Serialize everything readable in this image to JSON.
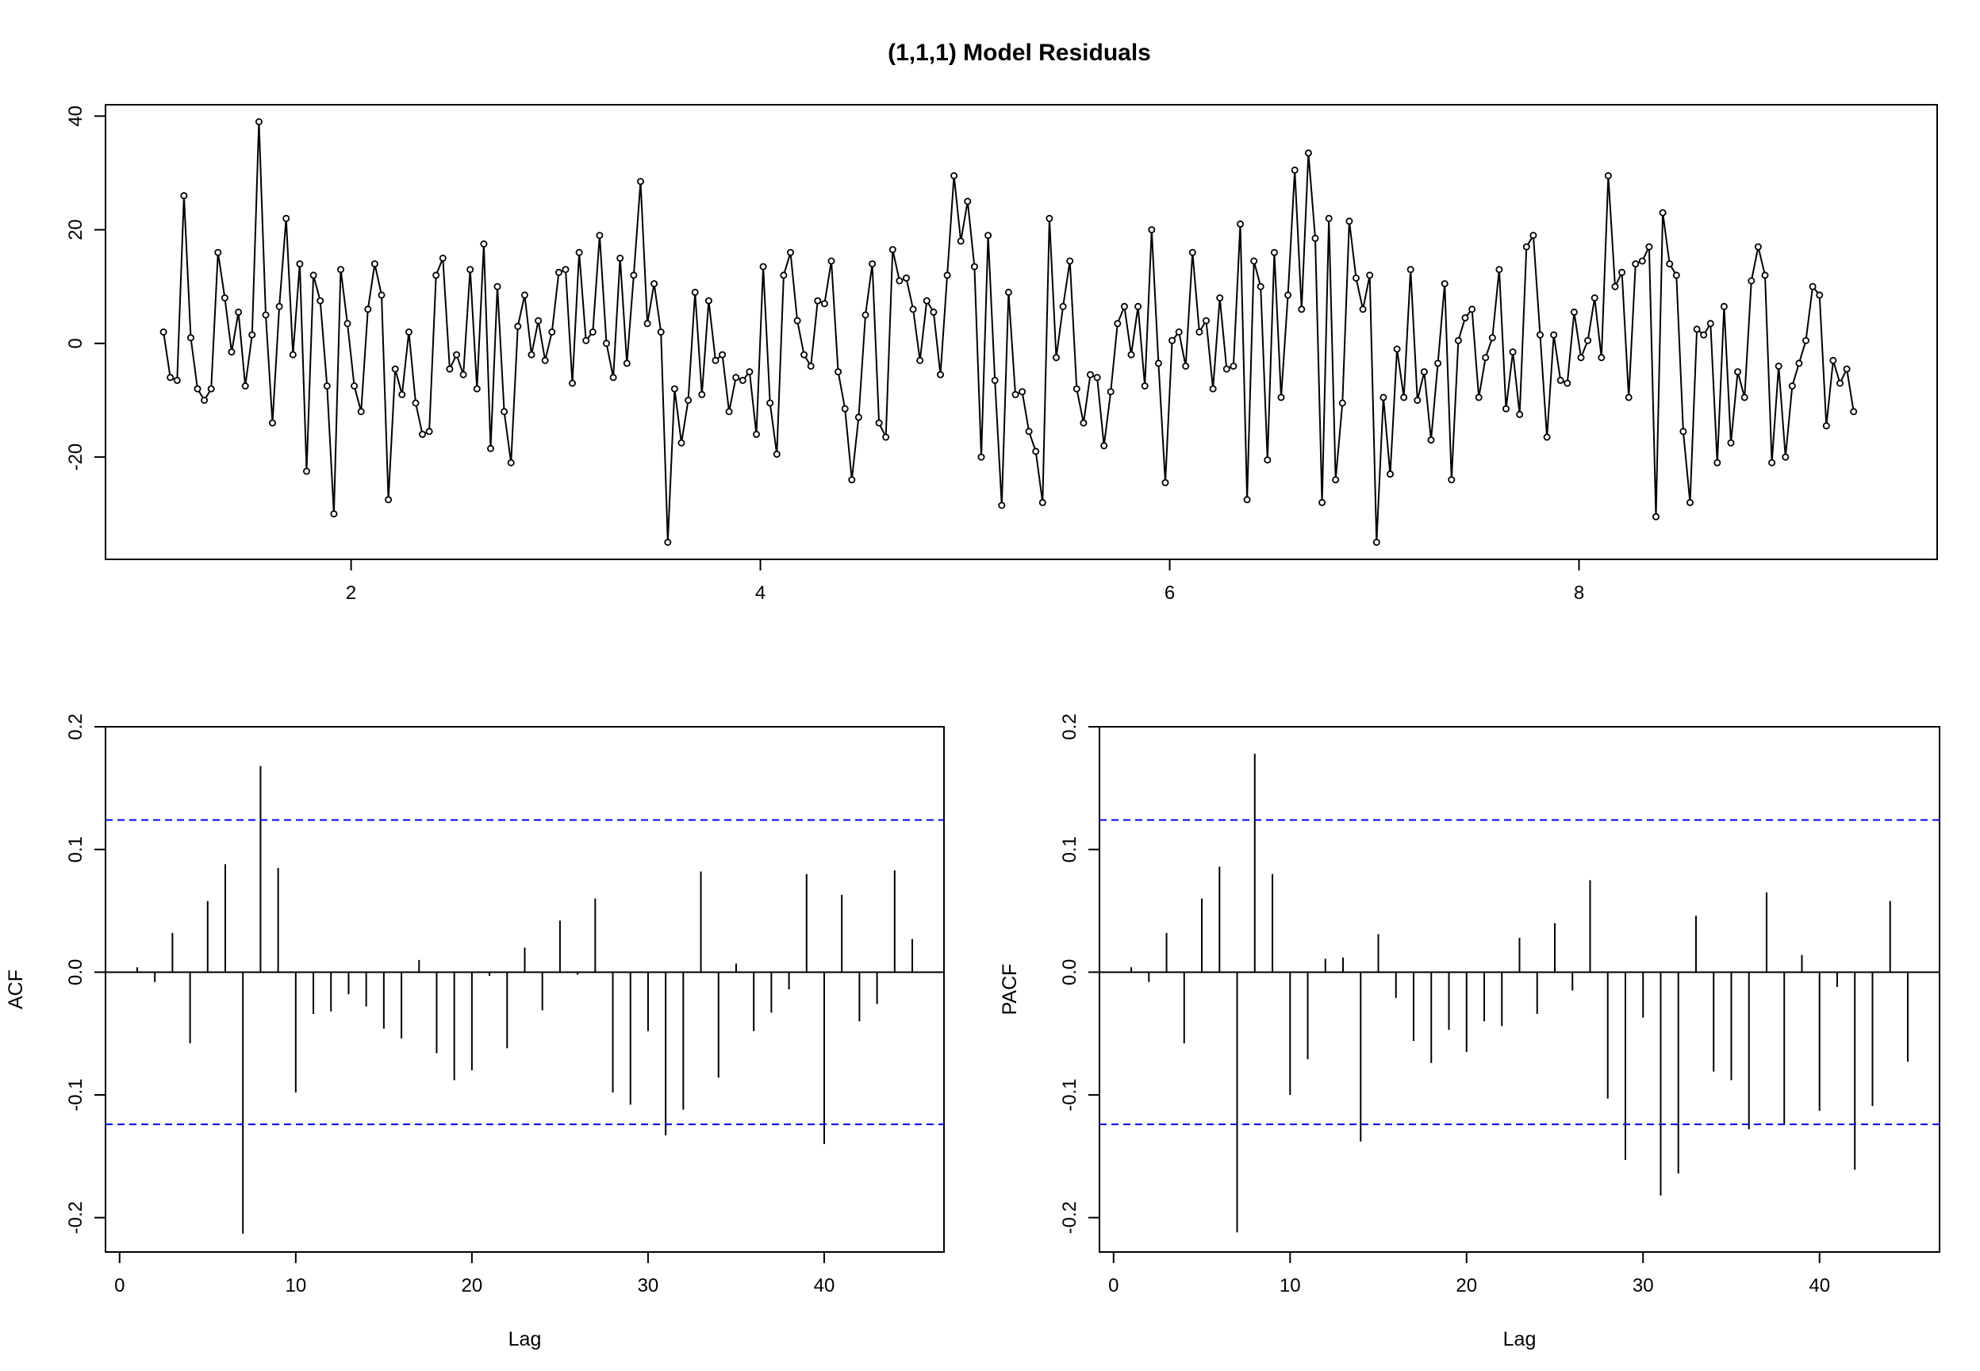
{
  "title": "(1,1,1) Model Residuals",
  "chart_data": [
    {
      "type": "line",
      "markers": true,
      "xlim": [
        0.8,
        9.75
      ],
      "ylim": [
        -38,
        42
      ],
      "x_ticks": [
        2,
        4,
        6,
        8
      ],
      "y_ticks": [
        -20,
        0,
        20,
        40
      ],
      "x_start": 1.0833,
      "x_step": 0.0333,
      "y": [
        2,
        -6,
        -6.5,
        26,
        1,
        -8,
        -10,
        -8,
        16,
        8,
        -1.5,
        5.5,
        -7.5,
        1.5,
        39,
        5,
        -14,
        6.5,
        22,
        -2,
        14,
        -22.5,
        12,
        7.5,
        -7.5,
        -30,
        13,
        3.5,
        -7.5,
        -12,
        6,
        14,
        8.5,
        -27.5,
        -4.5,
        -9,
        2,
        -10.5,
        -16,
        -15.5,
        12,
        15,
        -4.5,
        -2,
        -5.5,
        13,
        -8,
        17.5,
        -18.5,
        10,
        -12,
        -21,
        3,
        8.5,
        -2,
        4,
        -3,
        2,
        12.5,
        13,
        -7,
        16,
        0.5,
        2,
        19,
        0,
        -6,
        15,
        -3.5,
        12,
        28.5,
        3.5,
        10.5,
        2,
        -35,
        -8,
        -17.5,
        -10,
        9,
        -9,
        7.5,
        -3,
        -2,
        -12,
        -6,
        -6.5,
        -5,
        -16,
        13.5,
        -10.5,
        -19.5,
        12,
        16,
        4,
        -2,
        -4,
        7.5,
        7,
        14.5,
        -5,
        -11.5,
        -24,
        -13,
        5,
        14,
        -14,
        -16.5,
        16.5,
        11,
        11.5,
        6,
        -3,
        7.5,
        5.5,
        -5.5,
        12,
        29.5,
        18,
        25,
        13.5,
        -20,
        19,
        -6.5,
        -28.5,
        9,
        -9,
        -8.5,
        -15.5,
        -19,
        -28,
        22,
        -2.5,
        6.5,
        14.5,
        -8,
        -14,
        -5.5,
        -6,
        -18,
        -8.5,
        3.5,
        6.5,
        -2,
        6.5,
        -7.5,
        20,
        -3.5,
        -24.5,
        0.5,
        2,
        -4,
        16,
        2,
        4,
        -8,
        8,
        -4.5,
        -4,
        21,
        -27.5,
        14.5,
        10,
        -20.5,
        16,
        -9.5,
        8.5,
        30.5,
        6,
        33.5,
        18.5,
        -28,
        22,
        -24,
        -10.5,
        21.5,
        11.5,
        6,
        12,
        -35,
        -9.5,
        -23,
        -1,
        -9.5,
        13,
        -10,
        -5,
        -17,
        -3.5,
        10.5,
        -24,
        0.5,
        4.5,
        6,
        -9.5,
        -2.5,
        1,
        13,
        -11.5,
        -1.5,
        -12.5,
        17,
        19,
        1.5,
        -16.5,
        1.5,
        -6.5,
        -7,
        5.5,
        -2.5,
        0.5,
        8,
        -2.5,
        29.5,
        10,
        12.5,
        -9.5,
        14,
        14.5,
        17,
        -30.5,
        23,
        14,
        12,
        -15.5,
        -28,
        2.5,
        1.5,
        3.5,
        -21,
        6.5,
        -17.5,
        -5,
        -9.5,
        11,
        17,
        12,
        -21,
        -4,
        -20,
        -7.5,
        -3.5,
        0.5,
        10,
        8.5,
        -14.5,
        -3,
        -7,
        -4.5,
        -12
      ]
    },
    {
      "type": "bar",
      "ylabel": "ACF",
      "xlabel": "Lag",
      "xlim": [
        -0.8,
        46.8
      ],
      "ylim": [
        -0.228,
        0.2
      ],
      "x_ticks": [
        0,
        10,
        20,
        30,
        40
      ],
      "y_ticks": [
        -0.2,
        -0.1,
        0.0,
        0.1,
        0.2
      ],
      "ci": 0.124,
      "ci_color": "#0000ff",
      "lags": [
        1,
        2,
        3,
        4,
        5,
        6,
        7,
        8,
        9,
        10,
        11,
        12,
        13,
        14,
        15,
        16,
        17,
        18,
        19,
        20,
        21,
        22,
        23,
        24,
        25,
        26,
        27,
        28,
        29,
        30,
        31,
        32,
        33,
        34,
        35,
        36,
        37,
        38,
        39,
        40,
        41,
        42,
        43,
        44,
        45
      ],
      "values": [
        0.004,
        -0.008,
        0.032,
        -0.058,
        0.058,
        0.088,
        -0.213,
        0.168,
        0.085,
        -0.098,
        -0.034,
        -0.032,
        -0.018,
        -0.028,
        -0.046,
        -0.054,
        0.01,
        -0.066,
        -0.088,
        -0.08,
        -0.003,
        -0.062,
        0.02,
        -0.031,
        0.042,
        -0.002,
        0.06,
        -0.098,
        -0.108,
        -0.048,
        -0.133,
        -0.112,
        0.082,
        -0.086,
        0.007,
        -0.048,
        -0.033,
        -0.014,
        0.08,
        -0.14,
        0.063,
        -0.04,
        -0.026,
        0.083,
        0.027
      ]
    },
    {
      "type": "bar",
      "ylabel": "PACF",
      "xlabel": "Lag",
      "xlim": [
        -0.8,
        46.8
      ],
      "ylim": [
        -0.228,
        0.2
      ],
      "x_ticks": [
        0,
        10,
        20,
        30,
        40
      ],
      "y_ticks": [
        -0.2,
        -0.1,
        0.0,
        0.1,
        0.2
      ],
      "ci": 0.124,
      "ci_color": "#0000ff",
      "lags": [
        1,
        2,
        3,
        4,
        5,
        6,
        7,
        8,
        9,
        10,
        11,
        12,
        13,
        14,
        15,
        16,
        17,
        18,
        19,
        20,
        21,
        22,
        23,
        24,
        25,
        26,
        27,
        28,
        29,
        30,
        31,
        32,
        33,
        34,
        35,
        36,
        37,
        38,
        39,
        40,
        41,
        42,
        43,
        44,
        45
      ],
      "values": [
        0.004,
        -0.008,
        0.032,
        -0.058,
        0.06,
        0.086,
        -0.212,
        0.178,
        0.08,
        -0.1,
        -0.071,
        0.011,
        0.012,
        -0.138,
        0.031,
        -0.021,
        -0.056,
        -0.074,
        -0.047,
        -0.065,
        -0.04,
        -0.044,
        0.028,
        -0.034,
        0.04,
        -0.015,
        0.075,
        -0.103,
        -0.153,
        -0.037,
        -0.182,
        -0.164,
        0.046,
        -0.081,
        -0.088,
        -0.128,
        0.065,
        -0.124,
        0.014,
        -0.113,
        -0.012,
        -0.161,
        -0.109,
        0.058,
        -0.073
      ]
    }
  ]
}
